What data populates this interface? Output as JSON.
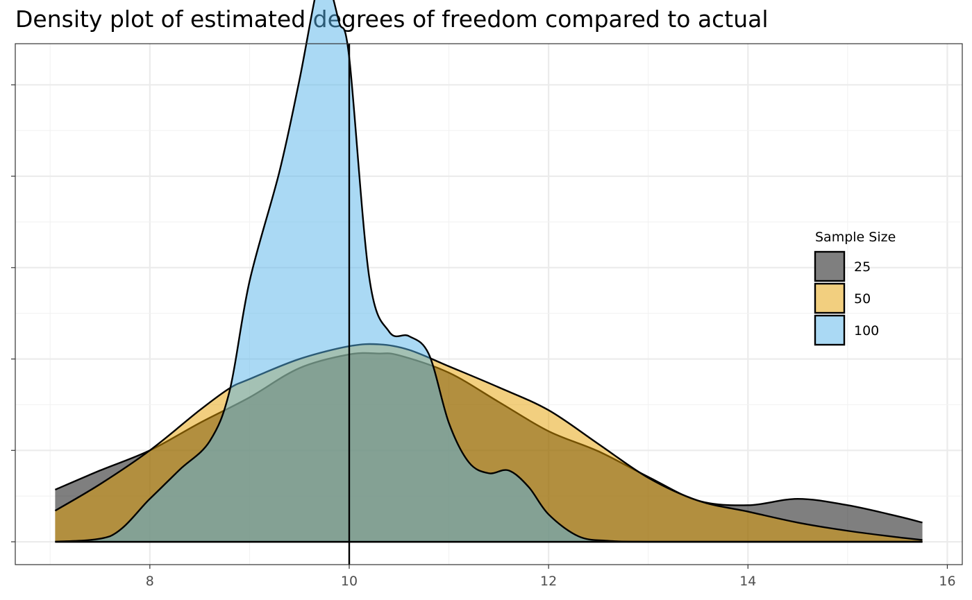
{
  "chart_data": {
    "type": "area",
    "title": "Density plot of estimated degrees of freedom compared to actual",
    "xlabel": "",
    "ylabel": "",
    "xlim": [
      6.65,
      16.15
    ],
    "ylim": [
      -0.025,
      0.545
    ],
    "x_ticks": [
      8,
      10,
      12,
      14,
      16
    ],
    "y_gridlines": [
      0,
      0.1,
      0.2,
      0.3,
      0.4,
      0.5
    ],
    "y_tick_labels_shown": false,
    "grid": true,
    "reference_line": {
      "x": 10
    },
    "legend": {
      "title": "Sample Size",
      "position": "right"
    },
    "series": [
      {
        "name": "25",
        "color": "#000000",
        "opacity": 0.5,
        "x": [
          7.05,
          7.5,
          8.0,
          8.5,
          9.0,
          9.5,
          10.0,
          10.3,
          10.5,
          11.0,
          11.5,
          12.0,
          12.5,
          13.0,
          13.5,
          14.0,
          14.5,
          15.0,
          15.5,
          15.75
        ],
        "y": [
          0.057,
          0.078,
          0.1,
          0.13,
          0.158,
          0.19,
          0.205,
          0.206,
          0.204,
          0.185,
          0.153,
          0.121,
          0.099,
          0.071,
          0.045,
          0.04,
          0.047,
          0.04,
          0.028,
          0.021
        ]
      },
      {
        "name": "50",
        "color": "#E69F00",
        "opacity": 0.5,
        "x": [
          7.05,
          7.5,
          8.0,
          8.5,
          8.8,
          9.0,
          9.5,
          10.0,
          10.3,
          10.6,
          11.0,
          11.5,
          12.0,
          12.5,
          13.0,
          13.5,
          14.0,
          14.5,
          15.0,
          15.5,
          15.75
        ],
        "y": [
          0.034,
          0.063,
          0.1,
          0.144,
          0.168,
          0.178,
          0.2,
          0.214,
          0.216,
          0.21,
          0.192,
          0.169,
          0.144,
          0.107,
          0.07,
          0.045,
          0.033,
          0.021,
          0.012,
          0.005,
          0.002
        ]
      },
      {
        "name": "100",
        "color": "#56B4E9",
        "opacity": 0.5,
        "x": [
          7.05,
          7.6,
          8.0,
          8.3,
          8.6,
          8.8,
          9.0,
          9.3,
          9.5,
          9.7,
          9.8,
          9.9,
          10.0,
          10.2,
          10.4,
          10.6,
          10.8,
          11.0,
          11.2,
          11.4,
          11.6,
          11.8,
          12.0,
          12.3,
          12.6,
          13.0,
          14.0,
          15.75
        ],
        "y": [
          0.0,
          0.006,
          0.047,
          0.079,
          0.11,
          0.165,
          0.285,
          0.405,
          0.505,
          0.615,
          0.608,
          0.568,
          0.53,
          0.29,
          0.23,
          0.225,
          0.205,
          0.13,
          0.087,
          0.075,
          0.078,
          0.06,
          0.03,
          0.006,
          0.001,
          0.0,
          0.0,
          0.0
        ]
      }
    ]
  }
}
